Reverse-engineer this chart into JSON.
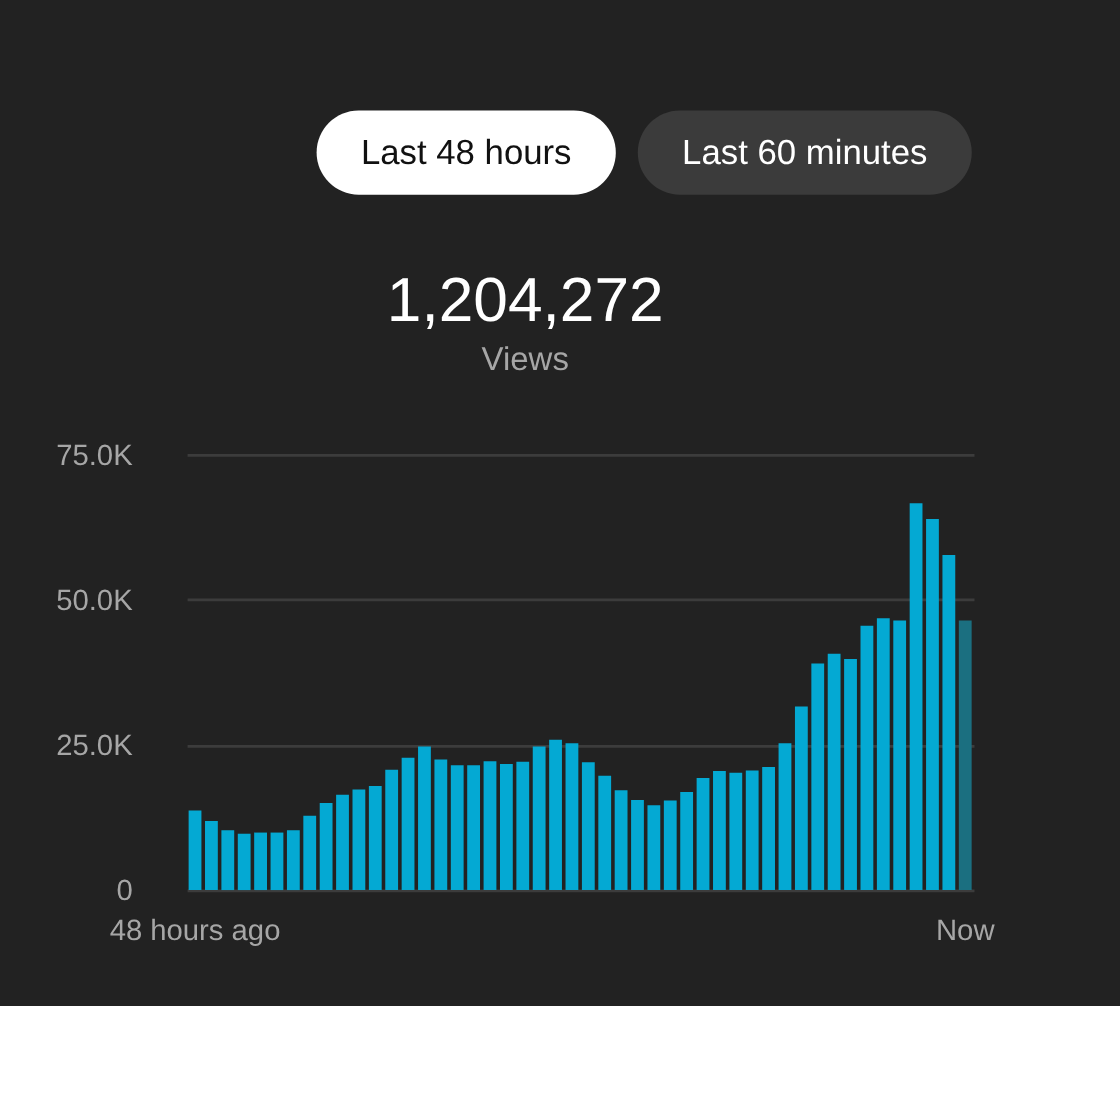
{
  "chart_data": {
    "type": "bar",
    "title": "1,204,272",
    "subtitle": "Views",
    "annotations": [
      "Last 48 hours",
      "Last 60 minutes"
    ],
    "categories": [
      "48 hours ago",
      null,
      null,
      null,
      null,
      null,
      null,
      null,
      null,
      null,
      null,
      null,
      null,
      null,
      null,
      null,
      null,
      null,
      null,
      null,
      null,
      null,
      null,
      null,
      null,
      null,
      null,
      null,
      null,
      null,
      null,
      null,
      null,
      null,
      null,
      null,
      null,
      null,
      null,
      null,
      null,
      null,
      null,
      null,
      null,
      null,
      null,
      "Now"
    ],
    "values": [
      13700,
      11900,
      10300,
      9700,
      9900,
      9900,
      10300,
      12800,
      15000,
      16400,
      17300,
      17900,
      20700,
      22800,
      24700,
      22500,
      21500,
      21500,
      22200,
      21700,
      22100,
      24700,
      25900,
      25300,
      22000,
      19700,
      17200,
      15500,
      14600,
      15400,
      16900,
      19300,
      20500,
      20200,
      20600,
      21200,
      25300,
      31600,
      39000,
      40700,
      39800,
      45500,
      46800,
      46400,
      66600,
      63900,
      57700,
      46400
    ],
    "colors": [
      "#04a9d3",
      "#04a9d3",
      "#04a9d3",
      "#04a9d3",
      "#04a9d3",
      "#04a9d3",
      "#04a9d3",
      "#04a9d3",
      "#04a9d3",
      "#04a9d3",
      "#04a9d3",
      "#04a9d3",
      "#04a9d3",
      "#04a9d3",
      "#04a9d3",
      "#04a9d3",
      "#04a9d3",
      "#04a9d3",
      "#04a9d3",
      "#04a9d3",
      "#04a9d3",
      "#04a9d3",
      "#04a9d3",
      "#04a9d3",
      "#04a9d3",
      "#04a9d3",
      "#04a9d3",
      "#04a9d3",
      "#04a9d3",
      "#04a9d3",
      "#04a9d3",
      "#04a9d3",
      "#04a9d3",
      "#04a9d3",
      "#04a9d3",
      "#04a9d3",
      "#04a9d3",
      "#04a9d3",
      "#04a9d3",
      "#04a9d3",
      "#04a9d3",
      "#04a9d3",
      "#04a9d3",
      "#04a9d3",
      "#04a9d3",
      "#04a9d3",
      "#04a9d3",
      "#1b6f80"
    ],
    "ylim": [
      0,
      75000
    ],
    "yticks": [
      0,
      {
        "value": 25000,
        "label": "25.0K"
      },
      {
        "value": 50000,
        "label": "50.0K"
      },
      {
        "value": 75000,
        "label": "75.0K"
      }
    ],
    "grid": "y"
  }
}
